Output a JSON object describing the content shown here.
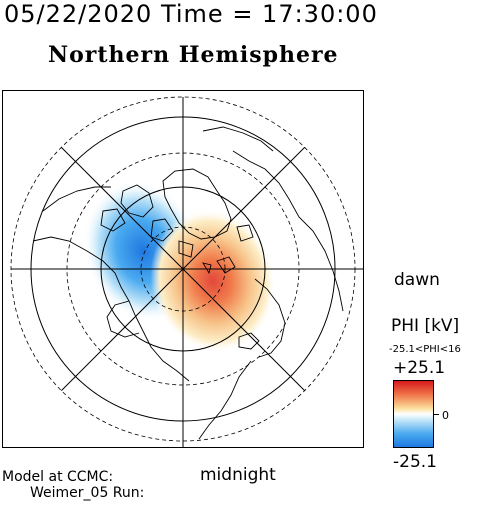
{
  "header": {
    "datetime": "05/22/2020 Time = 17:30:00",
    "hemisphere": "Northern Hemisphere"
  },
  "map": {
    "dawn_label": "dawn",
    "midnight_label": "midnight",
    "projection": "polar",
    "potential_pattern": "two-cell convection",
    "negative_cell": "dusk side (blue)",
    "positive_cell": "dawn side (red)"
  },
  "legend": {
    "title": "PHI [kV]",
    "range_text": "-25.1<PHI<16",
    "max_label": "+25.1",
    "zero_label": "0",
    "min_label": "-25.1",
    "max_value": 25.1,
    "min_value": -25.1,
    "colors": {
      "positive": "#d7191c",
      "zero": "#ffffff",
      "negative": "#1e78e0"
    }
  },
  "footer": {
    "model_line1": "Model at CCMC:",
    "model_line2": "Weimer_05 Run:"
  }
}
